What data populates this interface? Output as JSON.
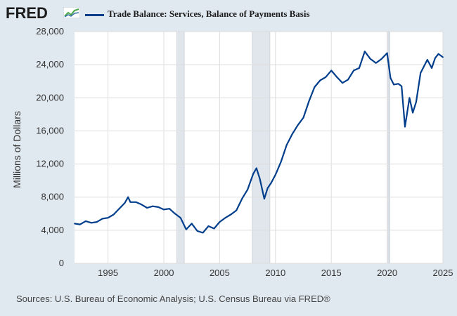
{
  "header": {
    "logo_text": "FRED",
    "series_label": "Trade Balance: Services, Balance of Payments Basis"
  },
  "source_note": "Sources: U.S. Bureau of Economic Analysis; U.S. Census Bureau via FRED®",
  "colors": {
    "background": "#e1e9f0",
    "plot_background": "#ffffff",
    "series": "#003e8c",
    "recession": "#e1e6ec",
    "grid": "#dddddd"
  },
  "chart_data": {
    "type": "line",
    "title": "Trade Balance: Services, Balance of Payments Basis",
    "xlabel": "",
    "ylabel": "Millions of Dollars",
    "xlim": [
      1992.0,
      2025.0
    ],
    "ylim": [
      0,
      28000
    ],
    "x_ticks": [
      "1995",
      "2000",
      "2005",
      "2010",
      "2015",
      "2020",
      "2025"
    ],
    "y_ticks": [
      "0",
      "4,000",
      "8,000",
      "12,000",
      "16,000",
      "20,000",
      "24,000",
      "28,000"
    ],
    "grid": true,
    "legend": "top",
    "recessions": [
      [
        2001.17,
        2001.83
      ],
      [
        2007.92,
        2009.5
      ],
      [
        2020.08,
        2020.25
      ]
    ],
    "series": [
      {
        "name": "Trade Balance: Services, Balance of Payments Basis",
        "x": [
          1992.0,
          1992.5,
          1993.0,
          1993.5,
          1994.0,
          1994.5,
          1995.0,
          1995.5,
          1996.0,
          1996.5,
          1996.8,
          1997.0,
          1997.5,
          1998.0,
          1998.5,
          1999.0,
          1999.5,
          2000.0,
          2000.5,
          2001.0,
          2001.5,
          2002.0,
          2002.5,
          2003.0,
          2003.5,
          2004.0,
          2004.5,
          2005.0,
          2005.5,
          2006.0,
          2006.5,
          2007.0,
          2007.5,
          2008.0,
          2008.3,
          2008.6,
          2009.0,
          2009.3,
          2009.6,
          2010.0,
          2010.5,
          2011.0,
          2011.5,
          2012.0,
          2012.5,
          2013.0,
          2013.5,
          2014.0,
          2014.5,
          2015.0,
          2015.5,
          2016.0,
          2016.5,
          2017.0,
          2017.5,
          2018.0,
          2018.5,
          2019.0,
          2019.5,
          2020.0,
          2020.3,
          2020.6,
          2021.0,
          2021.3,
          2021.6,
          2022.0,
          2022.3,
          2022.6,
          2023.0,
          2023.3,
          2023.6,
          2024.0,
          2024.3,
          2024.6,
          2025.0
        ],
        "values": [
          4800,
          4700,
          5100,
          4900,
          5000,
          5400,
          5500,
          5900,
          6600,
          7300,
          8000,
          7400,
          7400,
          7100,
          6700,
          6900,
          6800,
          6500,
          6600,
          6000,
          5500,
          4100,
          4800,
          3900,
          3700,
          4500,
          4200,
          5000,
          5500,
          5900,
          6400,
          7800,
          8900,
          10800,
          11500,
          10200,
          7800,
          9100,
          9700,
          10700,
          12300,
          14300,
          15600,
          16700,
          17600,
          19600,
          21300,
          22100,
          22500,
          23300,
          22500,
          21800,
          22200,
          23300,
          23600,
          25600,
          24700,
          24200,
          24700,
          25400,
          22400,
          21600,
          21700,
          21400,
          16500,
          20000,
          18200,
          19500,
          23000,
          23800,
          24600,
          23600,
          24800,
          25300,
          24900
        ]
      }
    ]
  }
}
